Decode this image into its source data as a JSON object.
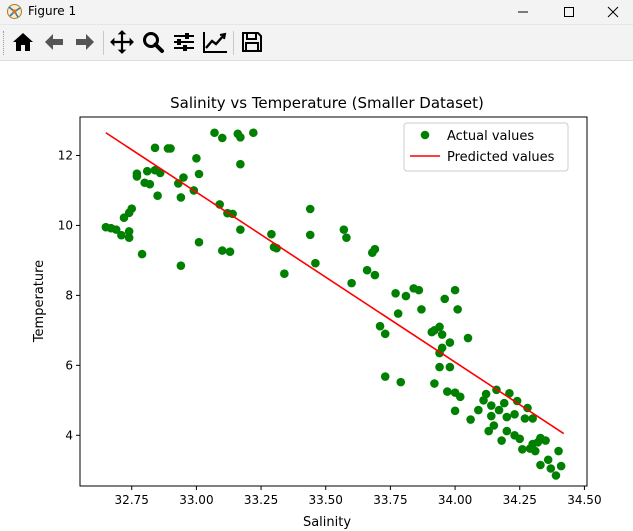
{
  "window": {
    "title": "Figure 1"
  },
  "toolbar": {
    "buttons": [
      {
        "name": "home-button",
        "icon": "home-icon"
      },
      {
        "name": "back-button",
        "icon": "arrow-left-icon"
      },
      {
        "name": "forward-button",
        "icon": "arrow-right-icon"
      },
      {
        "name": "pan-button",
        "icon": "move-icon"
      },
      {
        "name": "zoom-button",
        "icon": "magnifier-icon"
      },
      {
        "name": "configure-subplots-button",
        "icon": "sliders-icon"
      },
      {
        "name": "edit-axis-button",
        "icon": "line-chart-icon"
      },
      {
        "name": "save-button",
        "icon": "floppy-disk-icon"
      }
    ]
  },
  "colors": {
    "actual": "#008000",
    "predicted": "#ff0000"
  },
  "chart_data": {
    "type": "scatter",
    "title": "Salinity vs Temperature (Smaller Dataset)",
    "xlabel": "Salinity",
    "ylabel": "Temperature",
    "xlim": [
      32.55,
      34.51
    ],
    "ylim": [
      2.55,
      13.1
    ],
    "xticks": [
      32.75,
      33.0,
      33.25,
      33.5,
      33.75,
      34.0,
      34.25,
      34.5
    ],
    "xtick_labels": [
      "32.75",
      "33.00",
      "33.25",
      "33.50",
      "33.75",
      "34.00",
      "34.25",
      "34.50"
    ],
    "yticks": [
      4,
      6,
      8,
      10,
      12
    ],
    "ytick_labels": [
      "4",
      "6",
      "8",
      "10",
      "12"
    ],
    "legend_position": "top-right",
    "series": [
      {
        "name": "Actual values",
        "kind": "scatter",
        "points": [
          [
            32.65,
            9.95
          ],
          [
            32.67,
            9.92
          ],
          [
            32.69,
            9.88
          ],
          [
            32.71,
            9.72
          ],
          [
            32.72,
            10.22
          ],
          [
            32.74,
            9.83
          ],
          [
            32.74,
            9.65
          ],
          [
            32.74,
            10.36
          ],
          [
            32.75,
            10.48
          ],
          [
            32.77,
            11.48
          ],
          [
            32.77,
            11.4
          ],
          [
            32.79,
            9.18
          ],
          [
            32.8,
            11.22
          ],
          [
            32.81,
            11.55
          ],
          [
            32.82,
            11.18
          ],
          [
            32.84,
            12.22
          ],
          [
            32.84,
            11.58
          ],
          [
            32.85,
            10.85
          ],
          [
            32.86,
            11.5
          ],
          [
            32.89,
            12.2
          ],
          [
            32.9,
            12.2
          ],
          [
            32.93,
            11.2
          ],
          [
            32.94,
            10.8
          ],
          [
            32.94,
            8.85
          ],
          [
            32.95,
            11.37
          ],
          [
            32.99,
            11.0
          ],
          [
            33.0,
            11.92
          ],
          [
            33.01,
            9.52
          ],
          [
            33.01,
            11.47
          ],
          [
            33.07,
            12.65
          ],
          [
            33.09,
            10.6
          ],
          [
            33.1,
            12.5
          ],
          [
            33.1,
            9.28
          ],
          [
            33.12,
            10.35
          ],
          [
            33.13,
            9.25
          ],
          [
            33.14,
            10.33
          ],
          [
            33.16,
            12.62
          ],
          [
            33.17,
            12.52
          ],
          [
            33.17,
            11.75
          ],
          [
            33.17,
            9.88
          ],
          [
            33.22,
            12.65
          ],
          [
            33.29,
            9.75
          ],
          [
            33.3,
            9.38
          ],
          [
            33.31,
            9.35
          ],
          [
            33.34,
            8.62
          ],
          [
            33.44,
            10.47
          ],
          [
            33.44,
            9.73
          ],
          [
            33.46,
            8.92
          ],
          [
            33.57,
            9.88
          ],
          [
            33.58,
            9.65
          ],
          [
            33.6,
            8.35
          ],
          [
            33.66,
            8.72
          ],
          [
            33.68,
            9.22
          ],
          [
            33.69,
            9.32
          ],
          [
            33.69,
            8.58
          ],
          [
            33.71,
            7.12
          ],
          [
            33.73,
            5.68
          ],
          [
            33.73,
            6.9
          ],
          [
            33.77,
            8.06
          ],
          [
            33.78,
            7.48
          ],
          [
            33.79,
            5.52
          ],
          [
            33.81,
            7.98
          ],
          [
            33.84,
            8.2
          ],
          [
            33.86,
            8.15
          ],
          [
            33.87,
            7.6
          ],
          [
            33.91,
            6.95
          ],
          [
            33.92,
            5.48
          ],
          [
            33.92,
            7.0
          ],
          [
            33.94,
            7.1
          ],
          [
            33.94,
            5.95
          ],
          [
            33.94,
            6.35
          ],
          [
            33.95,
            6.88
          ],
          [
            33.95,
            6.5
          ],
          [
            33.96,
            7.9
          ],
          [
            33.97,
            5.25
          ],
          [
            33.98,
            6.65
          ],
          [
            33.98,
            5.95
          ],
          [
            34.0,
            4.7
          ],
          [
            34.0,
            5.22
          ],
          [
            34.0,
            8.15
          ],
          [
            34.01,
            7.6
          ],
          [
            34.02,
            5.1
          ],
          [
            34.05,
            6.78
          ],
          [
            34.06,
            4.45
          ],
          [
            34.09,
            4.72
          ],
          [
            34.11,
            5.0
          ],
          [
            34.12,
            5.18
          ],
          [
            34.13,
            4.12
          ],
          [
            34.14,
            4.55
          ],
          [
            34.14,
            4.85
          ],
          [
            34.15,
            4.28
          ],
          [
            34.16,
            5.3
          ],
          [
            34.17,
            4.72
          ],
          [
            34.18,
            3.85
          ],
          [
            34.19,
            4.92
          ],
          [
            34.2,
            4.52
          ],
          [
            34.2,
            4.12
          ],
          [
            34.21,
            5.2
          ],
          [
            34.23,
            4.0
          ],
          [
            34.23,
            4.6
          ],
          [
            34.24,
            4.98
          ],
          [
            34.25,
            3.9
          ],
          [
            34.26,
            3.6
          ],
          [
            34.27,
            4.48
          ],
          [
            34.28,
            4.78
          ],
          [
            34.29,
            3.62
          ],
          [
            34.3,
            4.48
          ],
          [
            34.3,
            3.75
          ],
          [
            34.31,
            3.55
          ],
          [
            34.32,
            3.8
          ],
          [
            34.33,
            3.92
          ],
          [
            34.33,
            3.15
          ],
          [
            34.35,
            3.85
          ],
          [
            34.36,
            3.3
          ],
          [
            34.37,
            3.05
          ],
          [
            34.39,
            2.85
          ],
          [
            34.4,
            3.55
          ],
          [
            34.41,
            3.12
          ]
        ]
      },
      {
        "name": "Predicted values",
        "kind": "line",
        "points": [
          [
            32.65,
            12.65
          ],
          [
            34.42,
            4.05
          ]
        ]
      }
    ]
  }
}
